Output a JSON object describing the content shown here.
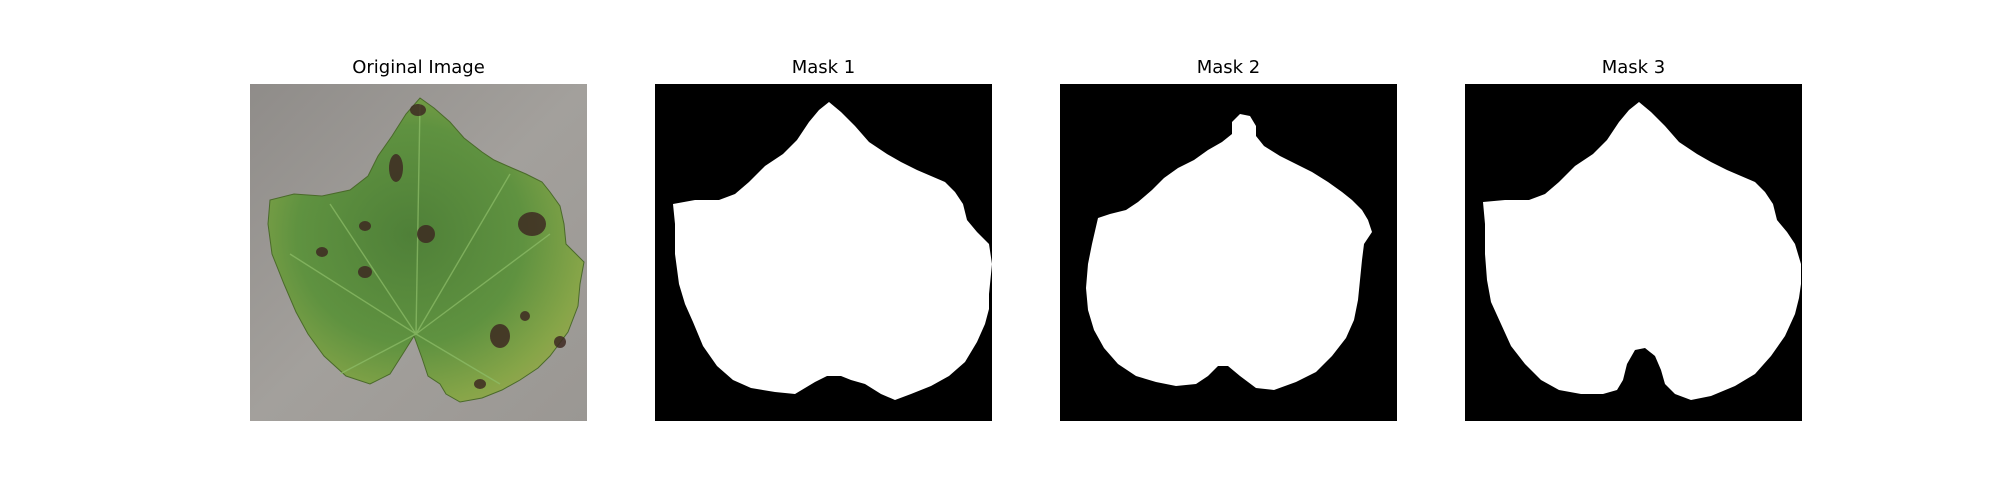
{
  "panels": [
    {
      "title": "Original Image",
      "image": "leaf-photo"
    },
    {
      "title": "Mask 1",
      "image": "segmentation-mask"
    },
    {
      "title": "Mask 2",
      "image": "segmentation-mask"
    },
    {
      "title": "Mask 3",
      "image": "segmentation-mask"
    }
  ],
  "colors": {
    "background": "#ffffff",
    "mask_foreground": "#ffffff",
    "mask_background": "#000000",
    "leaf_green": "#5a8a3c",
    "photo_background": "#9b9895"
  }
}
